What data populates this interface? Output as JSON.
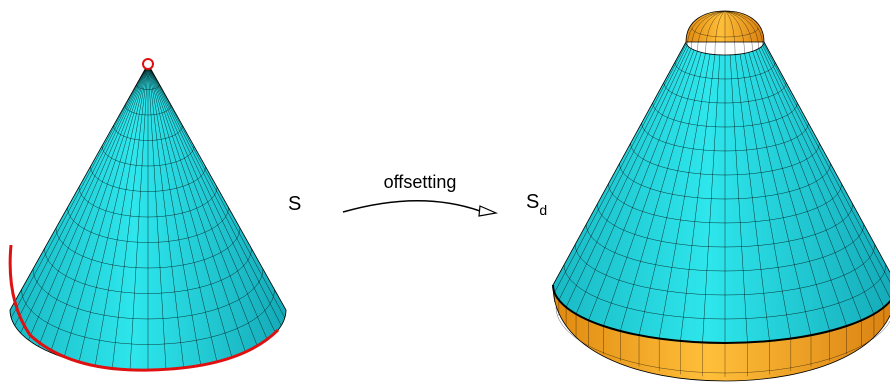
{
  "labels": {
    "left_surface": "S",
    "operation": "offsetting",
    "right_surface": {
      "base": "S",
      "subscript": "d"
    }
  }
}
